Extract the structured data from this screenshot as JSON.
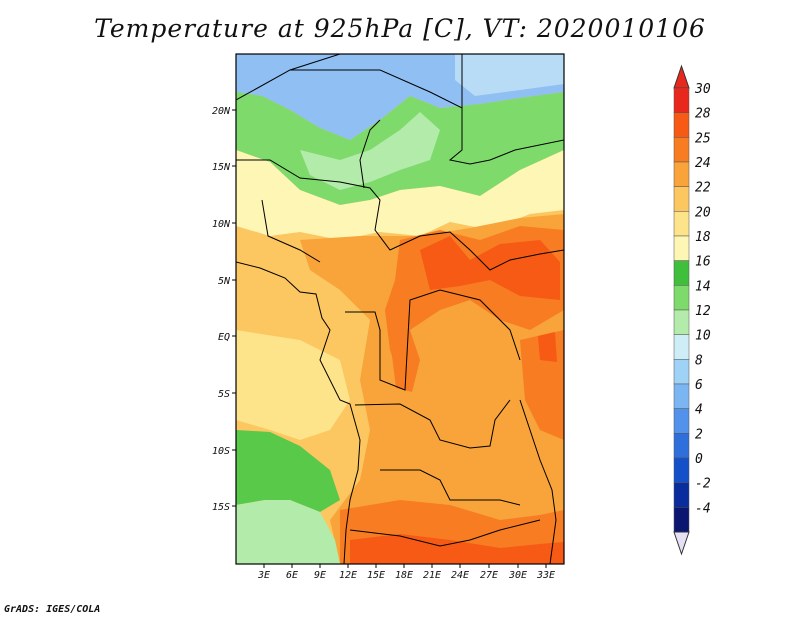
{
  "title": "Temperature at 925hPa [C], VT: 2020010106",
  "credit": "GrADS: IGES/COLA",
  "lat_labels": [
    "20N",
    "15N",
    "10N",
    "5N",
    "EQ",
    "5S",
    "10S",
    "15S"
  ],
  "lon_labels": [
    "3E",
    "6E",
    "9E",
    "12E",
    "15E",
    "18E",
    "21E",
    "24E",
    "27E",
    "30E",
    "33E"
  ],
  "colorbar": {
    "labels": [
      "30",
      "28",
      "25",
      "24",
      "22",
      "20",
      "18",
      "16",
      "14",
      "12",
      "10",
      "8",
      "6",
      "4",
      "2",
      "0",
      "-2",
      "-4"
    ],
    "colors": [
      "#e8281c",
      "#f65a14",
      "#f77c22",
      "#f9a43a",
      "#fcc660",
      "#fde38a",
      "#fdf6b5",
      "#3fbf3c",
      "#7fda6c",
      "#b3ecaa",
      "#cfedf7",
      "#9fd2f7",
      "#7bb6f2",
      "#5292ea",
      "#2e6fdc",
      "#1450c8",
      "#0a2d9e",
      "#0a1670"
    ]
  },
  "regions": {
    "north_cool": "#8fbff3",
    "north_green": "#7fda6c",
    "sahel_yellow": "#fdf6b5",
    "warm": "#f9a43a",
    "hot": "#f77c22",
    "hotter": "#f65a14",
    "south_green": "#59c94a"
  }
}
